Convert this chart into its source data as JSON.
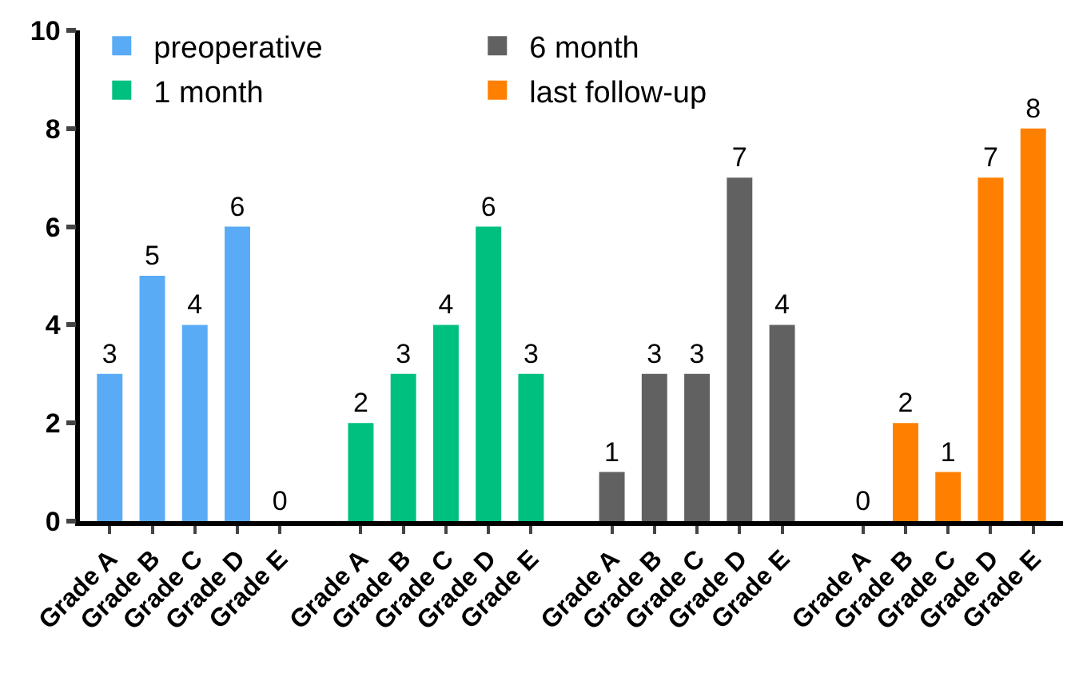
{
  "chart_data": {
    "type": "bar",
    "categories": [
      "Grade A",
      "Grade B",
      "Grade C",
      "Grade D",
      "Grade E",
      "Grade A",
      "Grade B",
      "Grade C",
      "Grade D",
      "Grade E",
      "Grade A",
      "Grade B",
      "Grade C",
      "Grade D",
      "Grade E",
      "Grade A",
      "Grade B",
      "Grade C",
      "Grade D",
      "Grade E"
    ],
    "series": [
      {
        "name": "preoperative",
        "color": "#5aabf5",
        "values": [
          3,
          5,
          4,
          6,
          0,
          null,
          null,
          null,
          null,
          null,
          null,
          null,
          null,
          null,
          null,
          null,
          null,
          null,
          null,
          null
        ]
      },
      {
        "name": "1 month",
        "color": "#00c07f",
        "values": [
          null,
          null,
          null,
          null,
          null,
          2,
          3,
          4,
          6,
          3,
          null,
          null,
          null,
          null,
          null,
          null,
          null,
          null,
          null,
          null
        ]
      },
      {
        "name": "6 month",
        "color": "#616161",
        "values": [
          null,
          null,
          null,
          null,
          null,
          null,
          null,
          null,
          null,
          null,
          1,
          3,
          3,
          7,
          4,
          null,
          null,
          null,
          null,
          null
        ]
      },
      {
        "name": "last follow-up",
        "color": "#ff8000",
        "values": [
          null,
          null,
          null,
          null,
          null,
          null,
          null,
          null,
          null,
          null,
          null,
          null,
          null,
          null,
          null,
          0,
          2,
          1,
          7,
          8
        ]
      }
    ],
    "ylim": [
      0,
      10
    ],
    "yticks": [
      0,
      2,
      4,
      6,
      8,
      10
    ],
    "data_labels": true,
    "legend": "top left"
  }
}
